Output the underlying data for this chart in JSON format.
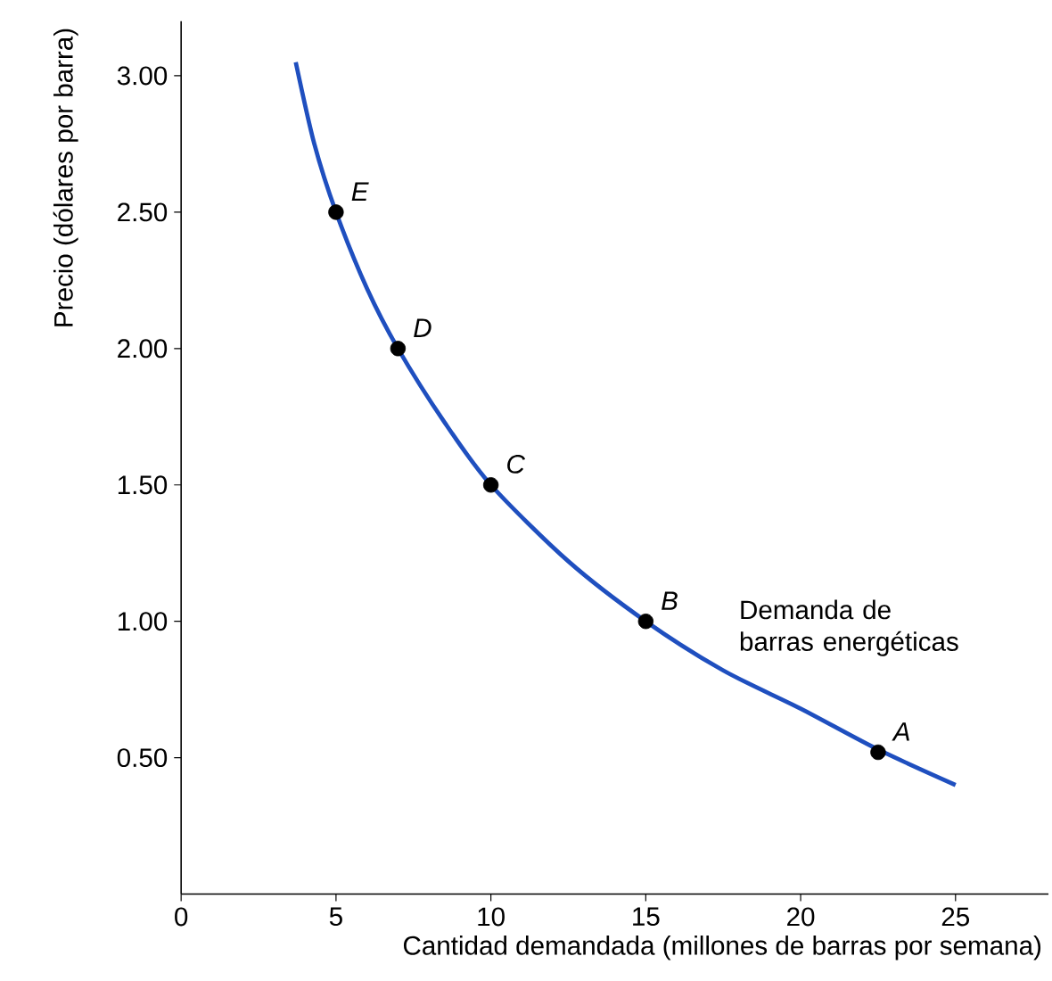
{
  "chart_data": {
    "type": "line",
    "xlabel": "Cantidad demandada (millones de barras por semana)",
    "ylabel": "Precio (dólares por barra)",
    "xlim": [
      0,
      28
    ],
    "ylim": [
      0,
      3.2
    ],
    "xticks": [
      0,
      5,
      10,
      15,
      20,
      25
    ],
    "yticks": [
      {
        "value": 0.5,
        "label": "0.50"
      },
      {
        "value": 1,
        "label": "1.00"
      },
      {
        "value": 1.5,
        "label": "1.50"
      },
      {
        "value": 2,
        "label": "2.00"
      },
      {
        "value": 2.5,
        "label": "2.50"
      },
      {
        "value": 3,
        "label": "3.00"
      }
    ],
    "series": [
      {
        "color": "#1f4fbf",
        "x": [
          3.7,
          4.3,
          5,
          6,
          7,
          8.5,
          10,
          12.5,
          15,
          17.5,
          20,
          22.5,
          25
        ],
        "values": [
          3.05,
          2.75,
          2.5,
          2.22,
          2.0,
          1.73,
          1.5,
          1.22,
          1.0,
          0.82,
          0.68,
          0.53,
          0.4
        ]
      },
      {
        "type": "scatter",
        "color": "#000000",
        "marker": "circle",
        "x": [
          22.5,
          15,
          10,
          7,
          5
        ],
        "values": [
          0.52,
          1.0,
          1.5,
          2.0,
          2.5
        ]
      }
    ],
    "annotations": [
      {
        "text": "A",
        "x": 22.5,
        "y": 0.52
      },
      {
        "text": "B",
        "x": 15,
        "y": 1.0
      },
      {
        "text": "C",
        "x": 10,
        "y": 1.5
      },
      {
        "text": "D",
        "x": 7,
        "y": 2.0
      },
      {
        "text": "E",
        "x": 5,
        "y": 2.5
      },
      "Demanda de barras energéticas"
    ]
  }
}
